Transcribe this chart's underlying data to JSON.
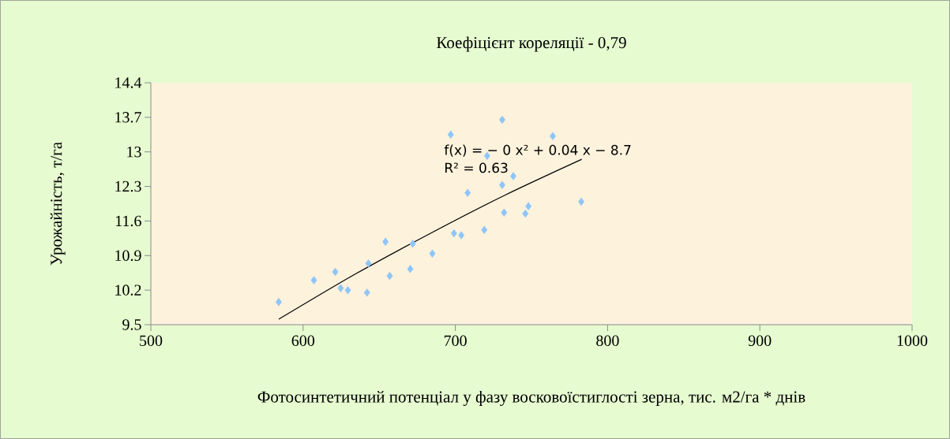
{
  "chart_data": {
    "type": "scatter",
    "title": "Коефіцієнт кореляції - 0,79",
    "xlabel": "Фотосинтетичний потенціал у фазу восковоїстиглості зерна, тис. м2/га * днів",
    "ylabel": "Урожайність, т/га",
    "annotations": [
      "f(x) = − 0 x² + 0.04 x − 8.7",
      "R² = 0.63"
    ],
    "xlim": [
      500,
      1000
    ],
    "xticks": [
      500,
      600,
      700,
      800,
      900,
      1000
    ],
    "ylim": [
      9.5,
      14.4
    ],
    "yticks": [
      9.5,
      10.2,
      10.9,
      11.6,
      12.3,
      13,
      13.7,
      14.4
    ],
    "marker": "diamond",
    "series": [
      {
        "color": "#8ec5fa",
        "x": [
          584.0,
          607.1,
          621.1,
          624.7,
          629.4,
          642.0,
          642.9,
          654.1,
          656.9,
          670.4,
          672.0,
          684.9,
          697.0,
          699.1,
          703.9,
          708.1,
          719.0,
          720.9,
          730.8,
          730.8,
          732.0,
          738.1,
          746.0,
          748.0,
          764.0,
          782.7
        ],
        "values": [
          9.96,
          10.4,
          10.57,
          10.24,
          10.2,
          10.15,
          10.74,
          11.18,
          10.49,
          10.63,
          11.14,
          10.94,
          13.35,
          11.35,
          11.31,
          12.17,
          11.42,
          12.92,
          13.65,
          12.33,
          11.77,
          12.51,
          11.75,
          11.9,
          13.32,
          11.99
        ]
      },
      {
        "type": "line",
        "marker": "none",
        "color": "#000000",
        "x": [
          584,
          634,
          683,
          733,
          783
        ],
        "values": [
          9.61,
          10.52,
          11.34,
          12.13,
          12.85
        ]
      }
    ]
  }
}
